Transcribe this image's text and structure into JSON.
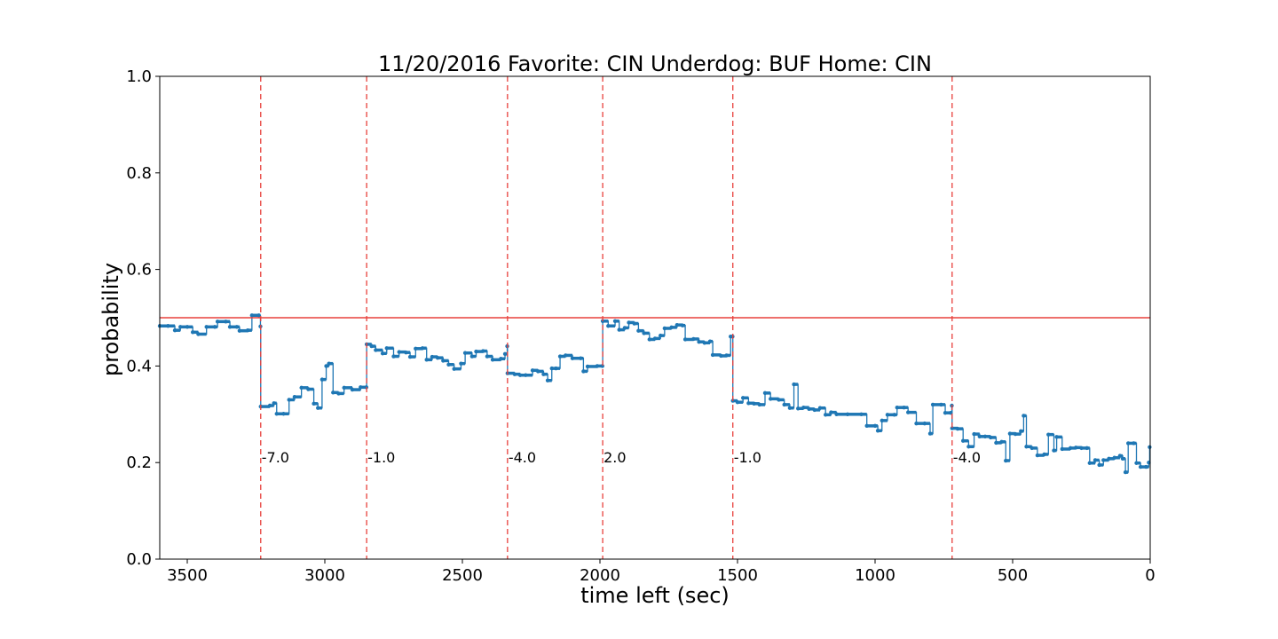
{
  "chart_data": {
    "type": "line",
    "title": "11/20/2016 Favorite: CIN Underdog: BUF Home: CIN",
    "xlabel": "time left (sec)",
    "ylabel": "probability",
    "xlim": [
      3600,
      0
    ],
    "ylim": [
      0.0,
      1.0
    ],
    "x_ticks": [
      3500,
      3000,
      2500,
      2000,
      1500,
      1000,
      500,
      0
    ],
    "x_tick_labels": [
      "3500",
      "3000",
      "2500",
      "2000",
      "1500",
      "1000",
      "500",
      "0"
    ],
    "y_ticks": [
      0.0,
      0.2,
      0.4,
      0.6,
      0.8,
      1.0
    ],
    "y_tick_labels": [
      "0.0",
      "0.2",
      "0.4",
      "0.6",
      "0.8",
      "1.0"
    ],
    "grid": false,
    "line_color": "#1f77b4",
    "reference_line": {
      "y": 0.5,
      "color": "#e8403c"
    },
    "score_events": [
      {
        "x": 3233,
        "label": "-7.0"
      },
      {
        "x": 2848,
        "label": "-1.0"
      },
      {
        "x": 2336,
        "label": "-4.0"
      },
      {
        "x": 1990,
        "label": "2.0"
      },
      {
        "x": 1517,
        "label": "-1.0"
      },
      {
        "x": 720,
        "label": "-4.0"
      }
    ],
    "event_line_color": "#e8403c",
    "series": [
      {
        "points": [
          [
            3600,
            0.483
          ],
          [
            3570,
            0.483
          ],
          [
            3545,
            0.474
          ],
          [
            3525,
            0.481
          ],
          [
            3500,
            0.481
          ],
          [
            3480,
            0.47
          ],
          [
            3460,
            0.466
          ],
          [
            3430,
            0.481
          ],
          [
            3400,
            0.481
          ],
          [
            3390,
            0.492
          ],
          [
            3360,
            0.492
          ],
          [
            3345,
            0.481
          ],
          [
            3320,
            0.481
          ],
          [
            3310,
            0.473
          ],
          [
            3280,
            0.474
          ],
          [
            3265,
            0.505
          ],
          [
            3240,
            0.505
          ],
          [
            3234,
            0.482
          ],
          [
            3233,
            0.316
          ],
          [
            3200,
            0.318
          ],
          [
            3185,
            0.323
          ],
          [
            3175,
            0.301
          ],
          [
            3150,
            0.301
          ],
          [
            3130,
            0.33
          ],
          [
            3110,
            0.336
          ],
          [
            3085,
            0.355
          ],
          [
            3060,
            0.352
          ],
          [
            3040,
            0.322
          ],
          [
            3025,
            0.313
          ],
          [
            3010,
            0.372
          ],
          [
            2995,
            0.4
          ],
          [
            2985,
            0.405
          ],
          [
            2970,
            0.345
          ],
          [
            2950,
            0.343
          ],
          [
            2930,
            0.355
          ],
          [
            2900,
            0.351
          ],
          [
            2870,
            0.356
          ],
          [
            2849,
            0.356
          ],
          [
            2848,
            0.445
          ],
          [
            2830,
            0.441
          ],
          [
            2815,
            0.433
          ],
          [
            2790,
            0.426
          ],
          [
            2775,
            0.437
          ],
          [
            2750,
            0.42
          ],
          [
            2730,
            0.429
          ],
          [
            2705,
            0.428
          ],
          [
            2690,
            0.419
          ],
          [
            2670,
            0.436
          ],
          [
            2645,
            0.437
          ],
          [
            2630,
            0.413
          ],
          [
            2610,
            0.419
          ],
          [
            2590,
            0.417
          ],
          [
            2570,
            0.411
          ],
          [
            2550,
            0.403
          ],
          [
            2530,
            0.394
          ],
          [
            2505,
            0.405
          ],
          [
            2490,
            0.427
          ],
          [
            2465,
            0.42
          ],
          [
            2450,
            0.43
          ],
          [
            2425,
            0.431
          ],
          [
            2410,
            0.42
          ],
          [
            2390,
            0.413
          ],
          [
            2360,
            0.415
          ],
          [
            2345,
            0.425
          ],
          [
            2337,
            0.441
          ],
          [
            2336,
            0.385
          ],
          [
            2310,
            0.383
          ],
          [
            2290,
            0.381
          ],
          [
            2270,
            0.381
          ],
          [
            2245,
            0.391
          ],
          [
            2225,
            0.389
          ],
          [
            2205,
            0.383
          ],
          [
            2190,
            0.37
          ],
          [
            2175,
            0.395
          ],
          [
            2160,
            0.395
          ],
          [
            2145,
            0.42
          ],
          [
            2125,
            0.422
          ],
          [
            2100,
            0.416
          ],
          [
            2070,
            0.416
          ],
          [
            2060,
            0.389
          ],
          [
            2045,
            0.399
          ],
          [
            2010,
            0.4
          ],
          [
            1991,
            0.4
          ],
          [
            1990,
            0.493
          ],
          [
            1970,
            0.483
          ],
          [
            1945,
            0.493
          ],
          [
            1930,
            0.475
          ],
          [
            1910,
            0.479
          ],
          [
            1895,
            0.49
          ],
          [
            1875,
            0.488
          ],
          [
            1860,
            0.473
          ],
          [
            1840,
            0.468
          ],
          [
            1820,
            0.455
          ],
          [
            1800,
            0.457
          ],
          [
            1780,
            0.463
          ],
          [
            1765,
            0.478
          ],
          [
            1740,
            0.48
          ],
          [
            1720,
            0.485
          ],
          [
            1700,
            0.484
          ],
          [
            1690,
            0.455
          ],
          [
            1660,
            0.456
          ],
          [
            1640,
            0.45
          ],
          [
            1620,
            0.448
          ],
          [
            1600,
            0.451
          ],
          [
            1590,
            0.423
          ],
          [
            1560,
            0.421
          ],
          [
            1540,
            0.422
          ],
          [
            1525,
            0.461
          ],
          [
            1518,
            0.461
          ],
          [
            1517,
            0.328
          ],
          [
            1500,
            0.325
          ],
          [
            1480,
            0.334
          ],
          [
            1460,
            0.323
          ],
          [
            1440,
            0.322
          ],
          [
            1420,
            0.32
          ],
          [
            1400,
            0.344
          ],
          [
            1380,
            0.332
          ],
          [
            1350,
            0.33
          ],
          [
            1330,
            0.32
          ],
          [
            1310,
            0.313
          ],
          [
            1295,
            0.362
          ],
          [
            1280,
            0.312
          ],
          [
            1260,
            0.314
          ],
          [
            1240,
            0.311
          ],
          [
            1220,
            0.309
          ],
          [
            1200,
            0.313
          ],
          [
            1180,
            0.299
          ],
          [
            1160,
            0.304
          ],
          [
            1140,
            0.3
          ],
          [
            1100,
            0.3
          ],
          [
            1050,
            0.3
          ],
          [
            1030,
            0.276
          ],
          [
            1000,
            0.276
          ],
          [
            990,
            0.266
          ],
          [
            975,
            0.287
          ],
          [
            955,
            0.299
          ],
          [
            930,
            0.299
          ],
          [
            920,
            0.314
          ],
          [
            895,
            0.314
          ],
          [
            880,
            0.304
          ],
          [
            850,
            0.281
          ],
          [
            820,
            0.281
          ],
          [
            800,
            0.26
          ],
          [
            790,
            0.32
          ],
          [
            760,
            0.32
          ],
          [
            745,
            0.303
          ],
          [
            725,
            0.303
          ],
          [
            721,
            0.318
          ],
          [
            720,
            0.271
          ],
          [
            700,
            0.27
          ],
          [
            680,
            0.245
          ],
          [
            660,
            0.233
          ],
          [
            640,
            0.259
          ],
          [
            620,
            0.254
          ],
          [
            600,
            0.254
          ],
          [
            580,
            0.252
          ],
          [
            560,
            0.241
          ],
          [
            540,
            0.243
          ],
          [
            525,
            0.204
          ],
          [
            510,
            0.26
          ],
          [
            490,
            0.259
          ],
          [
            470,
            0.265
          ],
          [
            460,
            0.297
          ],
          [
            450,
            0.233
          ],
          [
            430,
            0.23
          ],
          [
            410,
            0.215
          ],
          [
            385,
            0.217
          ],
          [
            370,
            0.258
          ],
          [
            350,
            0.225
          ],
          [
            340,
            0.253
          ],
          [
            320,
            0.228
          ],
          [
            290,
            0.23
          ],
          [
            270,
            0.231
          ],
          [
            250,
            0.23
          ],
          [
            230,
            0.23
          ],
          [
            220,
            0.199
          ],
          [
            200,
            0.205
          ],
          [
            185,
            0.195
          ],
          [
            170,
            0.205
          ],
          [
            150,
            0.208
          ],
          [
            130,
            0.21
          ],
          [
            110,
            0.214
          ],
          [
            100,
            0.208
          ],
          [
            90,
            0.18
          ],
          [
            80,
            0.24
          ],
          [
            60,
            0.24
          ],
          [
            50,
            0.199
          ],
          [
            35,
            0.191
          ],
          [
            15,
            0.191
          ],
          [
            5,
            0.2
          ],
          [
            2,
            0.232
          ]
        ]
      }
    ]
  }
}
